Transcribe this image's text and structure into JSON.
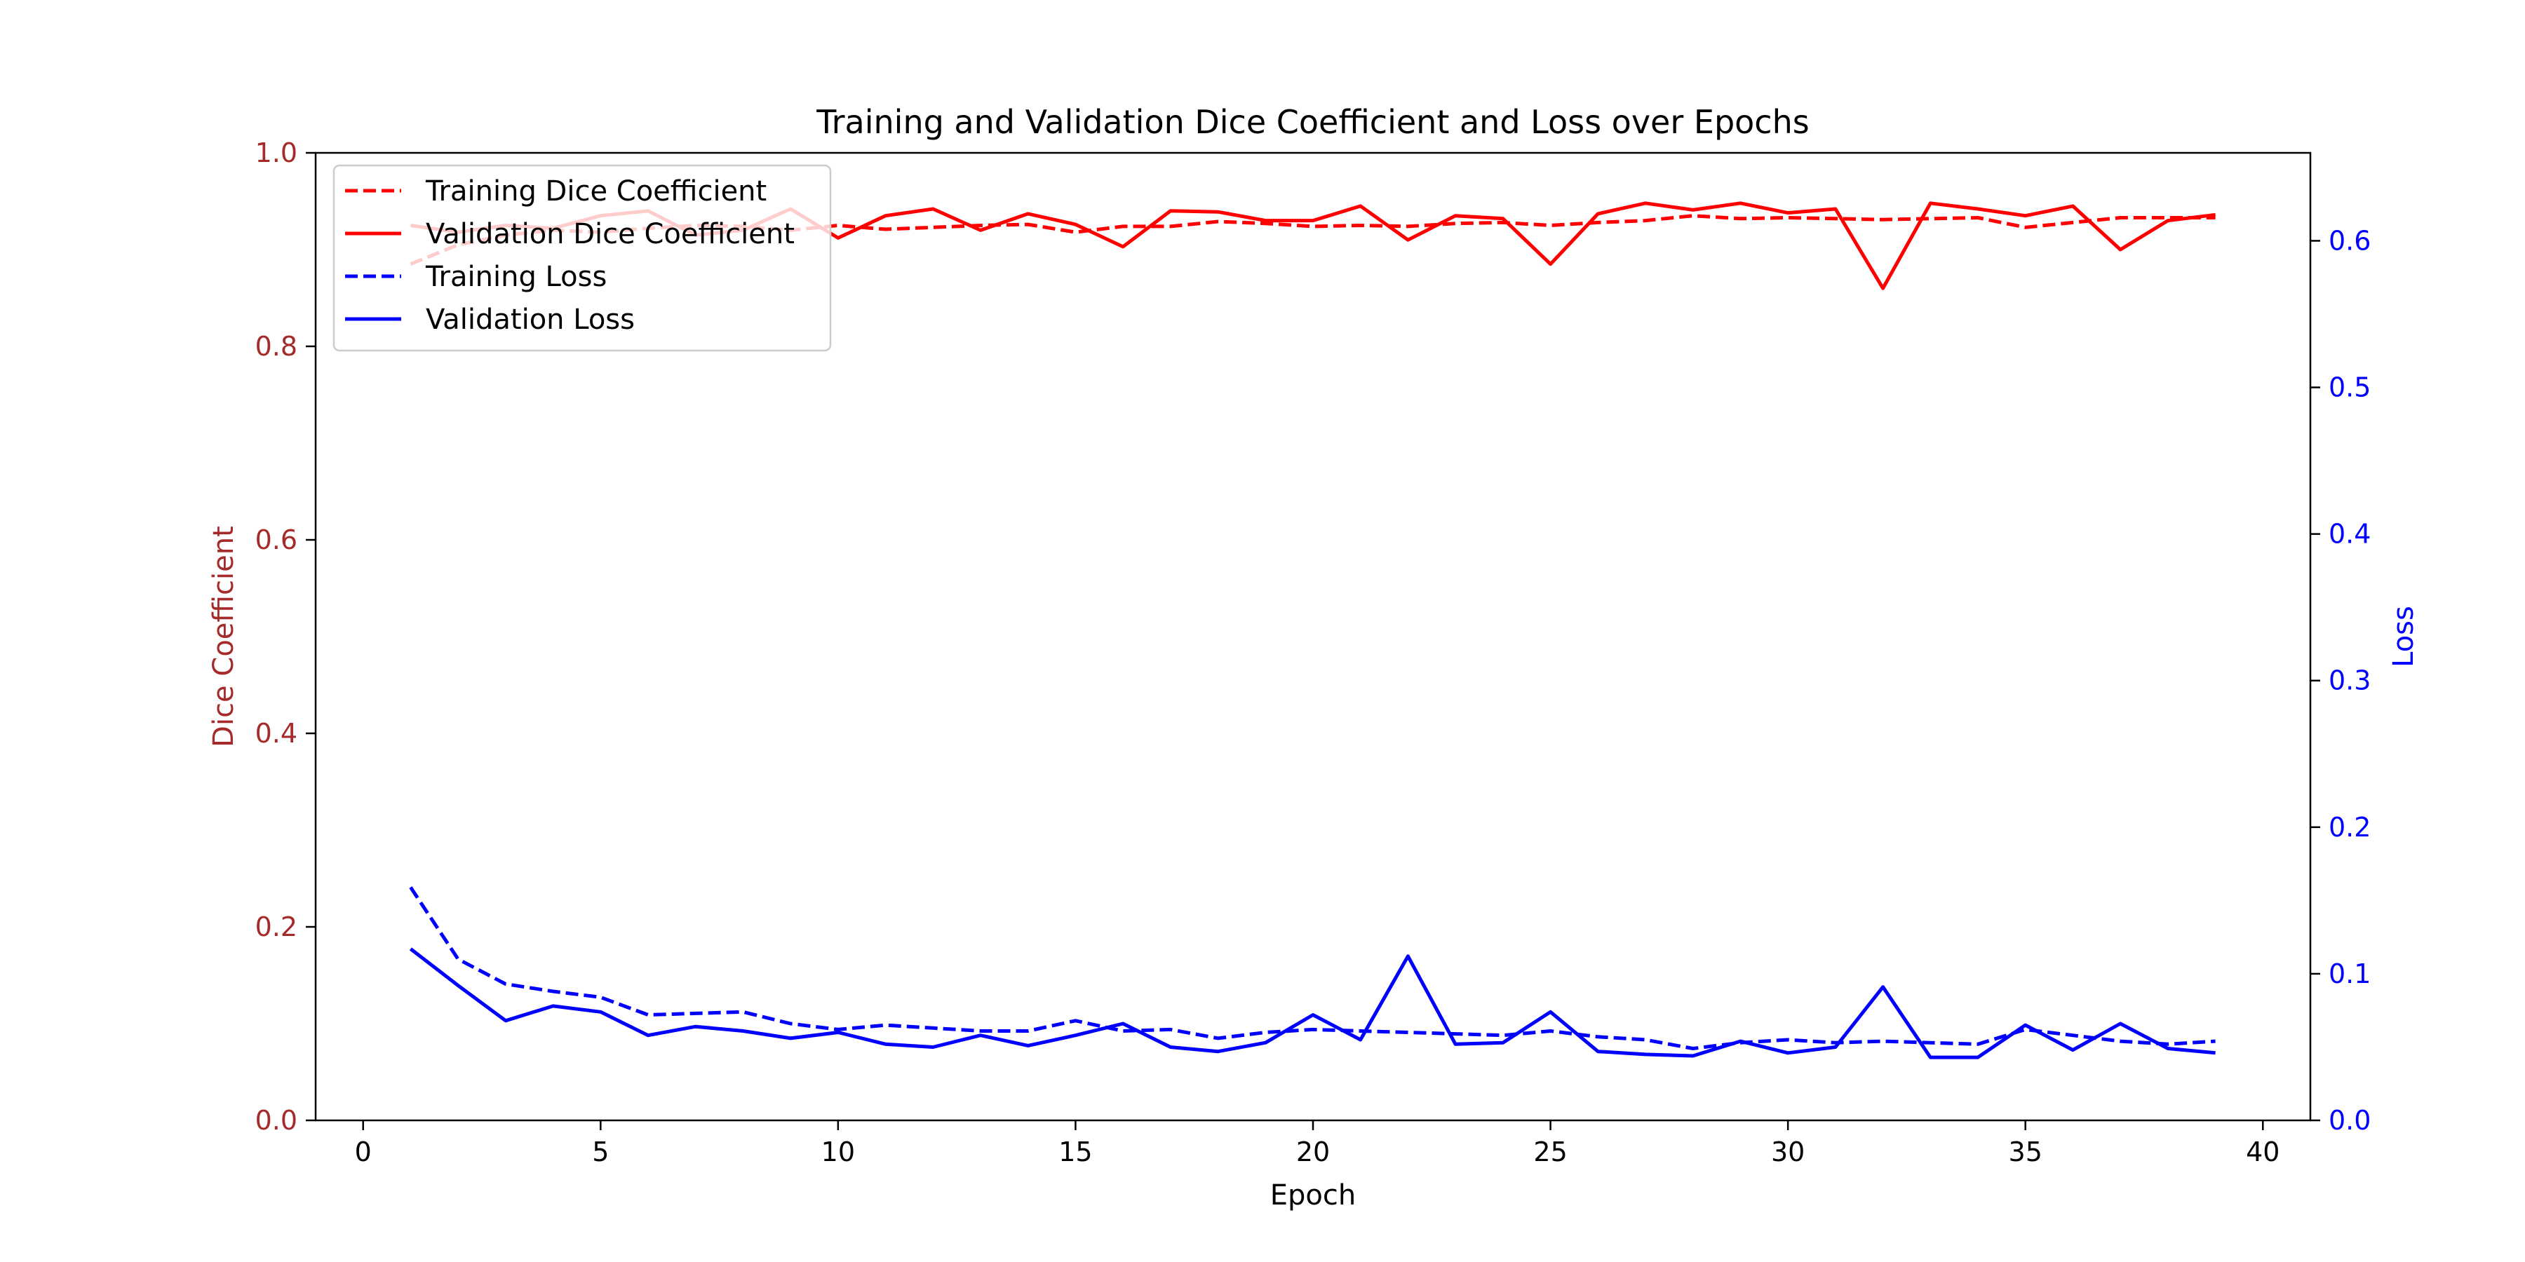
{
  "chart_data": {
    "type": "line",
    "title": "Training and Validation Dice Coefficient and Loss over Epochs",
    "xlabel": "Epoch",
    "ylabel_left": "Dice Coefficient",
    "ylabel_right": "Loss",
    "xlim": [
      -1,
      41
    ],
    "ylim_left": [
      0.0,
      1.0
    ],
    "ylim_right": [
      0.0,
      0.66
    ],
    "x_ticks": [
      "0",
      "5",
      "10",
      "15",
      "20",
      "25",
      "30",
      "35",
      "40"
    ],
    "y_left_ticks": [
      "0.0",
      "0.2",
      "0.4",
      "0.6",
      "0.8",
      "1.0"
    ],
    "y_right_ticks": [
      "0.0",
      "0.1",
      "0.2",
      "0.3",
      "0.4",
      "0.5",
      "0.6"
    ],
    "legend_position": "top-left",
    "grid": false,
    "left_axis_color": "#a52a2a",
    "right_axis_color": "#0000ff",
    "x": [
      1,
      2,
      3,
      4,
      5,
      6,
      7,
      8,
      9,
      10,
      11,
      12,
      13,
      14,
      15,
      16,
      17,
      18,
      19,
      20,
      21,
      22,
      23,
      24,
      25,
      26,
      27,
      28,
      29,
      30,
      31,
      32,
      33,
      34,
      35,
      36,
      37,
      38,
      39
    ],
    "series": [
      {
        "name": "Training Dice Coefficient",
        "axis": "left",
        "color": "#ff0000",
        "dash": true,
        "values": [
          0.885,
          0.905,
          0.915,
          0.92,
          0.918,
          0.922,
          0.925,
          0.924,
          0.92,
          0.925,
          0.921,
          0.923,
          0.925,
          0.926,
          0.918,
          0.924,
          0.924,
          0.929,
          0.927,
          0.924,
          0.925,
          0.924,
          0.927,
          0.928,
          0.925,
          0.928,
          0.93,
          0.935,
          0.932,
          0.933,
          0.932,
          0.931,
          0.932,
          0.933,
          0.923,
          0.928,
          0.933,
          0.933,
          0.933
        ]
      },
      {
        "name": "Validation Dice Coefficient",
        "axis": "left",
        "color": "#ff0000",
        "dash": false,
        "values": [
          0.925,
          0.918,
          0.925,
          0.922,
          0.935,
          0.94,
          0.915,
          0.92,
          0.942,
          0.912,
          0.935,
          0.942,
          0.92,
          0.937,
          0.926,
          0.903,
          0.94,
          0.939,
          0.93,
          0.93,
          0.945,
          0.91,
          0.935,
          0.932,
          0.885,
          0.937,
          0.948,
          0.941,
          0.948,
          0.938,
          0.942,
          0.86,
          0.948,
          0.942,
          0.935,
          0.945,
          0.9,
          0.93,
          0.936
        ]
      },
      {
        "name": "Training Loss",
        "axis": "right",
        "color": "#0000ff",
        "dash": true,
        "values": [
          0.159,
          0.11,
          0.093,
          0.088,
          0.084,
          0.072,
          0.073,
          0.074,
          0.066,
          0.062,
          0.065,
          0.063,
          0.061,
          0.061,
          0.068,
          0.061,
          0.062,
          0.056,
          0.06,
          0.062,
          0.061,
          0.06,
          0.059,
          0.058,
          0.061,
          0.057,
          0.055,
          0.049,
          0.053,
          0.055,
          0.053,
          0.054,
          0.053,
          0.052,
          0.062,
          0.058,
          0.054,
          0.052,
          0.054
        ]
      },
      {
        "name": "Validation Loss",
        "axis": "right",
        "color": "#0000ff",
        "dash": false,
        "values": [
          0.117,
          0.092,
          0.068,
          0.078,
          0.074,
          0.058,
          0.064,
          0.061,
          0.056,
          0.06,
          0.052,
          0.05,
          0.058,
          0.051,
          0.058,
          0.066,
          0.05,
          0.047,
          0.053,
          0.072,
          0.055,
          0.112,
          0.052,
          0.053,
          0.074,
          0.047,
          0.045,
          0.044,
          0.054,
          0.046,
          0.05,
          0.091,
          0.043,
          0.043,
          0.065,
          0.048,
          0.066,
          0.049,
          0.046
        ]
      }
    ]
  }
}
